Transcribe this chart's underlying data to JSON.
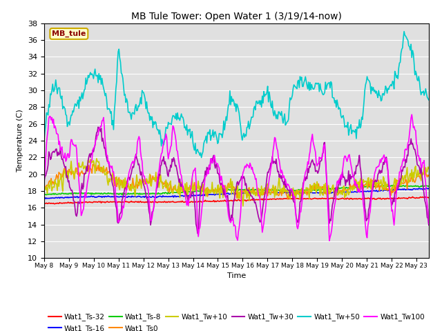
{
  "title": "MB Tule Tower: Open Water 1 (3/19/14-now)",
  "xlabel": "Time",
  "ylabel": "Temperature (C)",
  "ylim": [
    10,
    38
  ],
  "xlim": [
    0,
    15.5
  ],
  "series": {
    "Wat1_Ts-32": {
      "color": "#ff0000",
      "lw": 1.2
    },
    "Wat1_Ts-16": {
      "color": "#0000ff",
      "lw": 1.2
    },
    "Wat1_Ts-8": {
      "color": "#00cc00",
      "lw": 1.2
    },
    "Wat1_Ts0": {
      "color": "#ff8800",
      "lw": 1.2
    },
    "Wat1_Tw+10": {
      "color": "#cccc00",
      "lw": 1.2
    },
    "Wat1_Tw+30": {
      "color": "#aa00aa",
      "lw": 1.2
    },
    "Wat1_Tw+50": {
      "color": "#00cccc",
      "lw": 1.2
    },
    "Wat1_Tw100": {
      "color": "#ff00ff",
      "lw": 1.2
    }
  },
  "x_ticks": [
    0,
    1,
    2,
    3,
    4,
    5,
    6,
    7,
    8,
    9,
    10,
    11,
    12,
    13,
    14,
    15
  ],
  "x_tick_labels": [
    "May 8",
    "May 9",
    "May 10",
    "May 11",
    "May 12",
    "May 13",
    "May 14",
    "May 15",
    "May 16",
    "May 17",
    "May 18",
    "May 19",
    "May 20",
    "May 21",
    "May 22",
    "May 23"
  ],
  "yticks": [
    10,
    12,
    14,
    16,
    18,
    20,
    22,
    24,
    26,
    28,
    30,
    32,
    34,
    36,
    38
  ],
  "legend_row1": [
    "Wat1_Ts-32",
    "Wat1_Ts-16",
    "Wat1_Ts-8",
    "Wat1_Ts0",
    "Wat1_Tw+10",
    "Wat1_Tw+30"
  ],
  "legend_row2": [
    "Wat1_Tw+50",
    "Wat1_Tw100"
  ]
}
